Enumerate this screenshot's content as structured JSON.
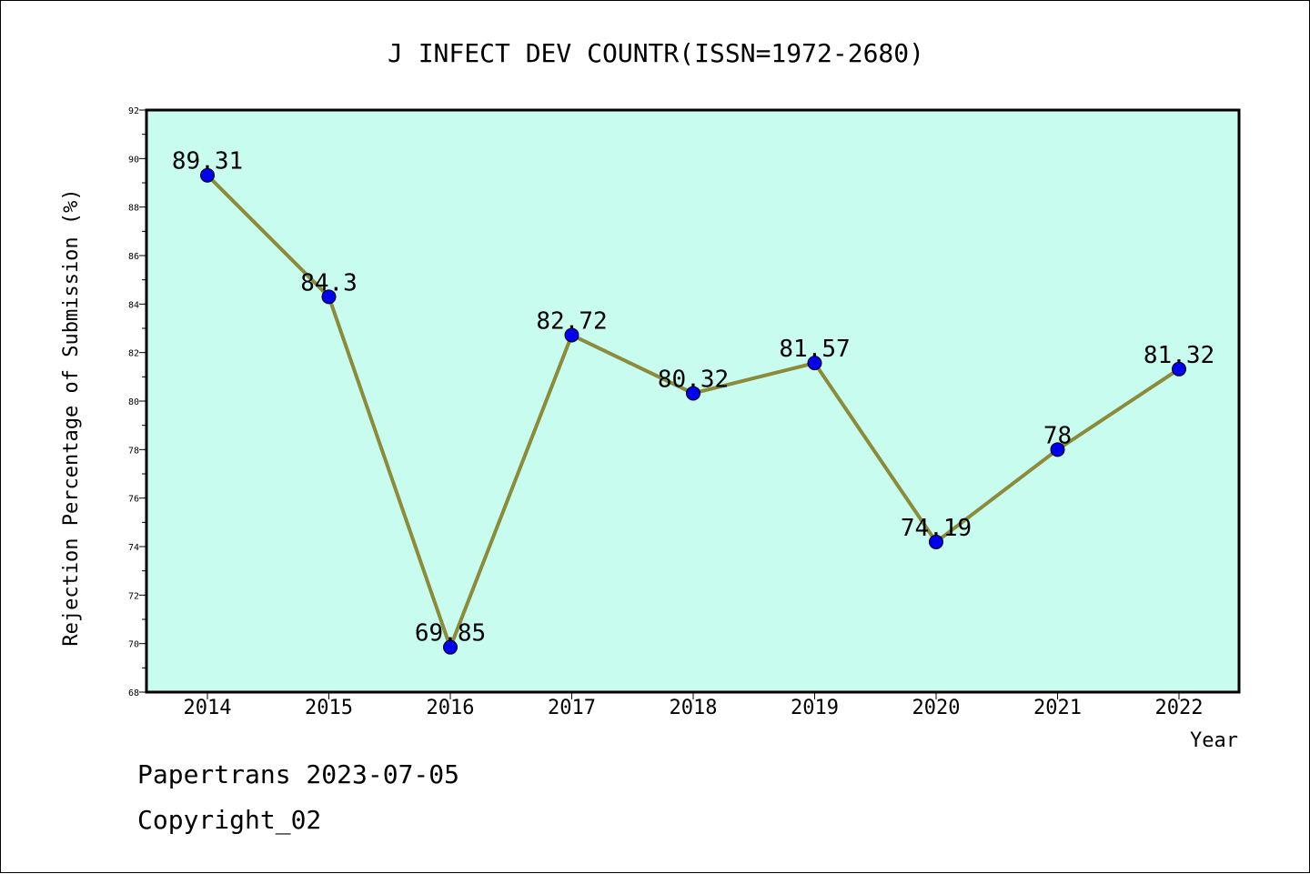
{
  "chart_data": {
    "type": "line",
    "title": "J INFECT DEV COUNTR(ISSN=1972-2680)",
    "xlabel": "Year",
    "ylabel": "Rejection Percentage of Submission (%)",
    "categories": [
      "2014",
      "2015",
      "2016",
      "2017",
      "2018",
      "2019",
      "2020",
      "2021",
      "2022"
    ],
    "series": [
      {
        "values": [
          89.31,
          84.3,
          69.85,
          82.72,
          80.32,
          81.57,
          74.19,
          78,
          81.32
        ],
        "labels": [
          "89.31",
          "84.3",
          "69.85",
          "82.72",
          "80.32",
          "81.57",
          "74.19",
          "78",
          "81.32"
        ]
      }
    ],
    "ylim": [
      68,
      92
    ],
    "yticks": [
      "68",
      "70",
      "72",
      "74",
      "76",
      "78",
      "80",
      "82",
      "84",
      "86",
      "88",
      "90",
      "92"
    ],
    "grid": false,
    "colors": {
      "plot_background": "#c8fcee",
      "line": "#8b8b3a",
      "marker": "#0000ee"
    }
  },
  "footer": {
    "line1": "Papertrans 2023-07-05",
    "line2": "Copyright_02"
  }
}
